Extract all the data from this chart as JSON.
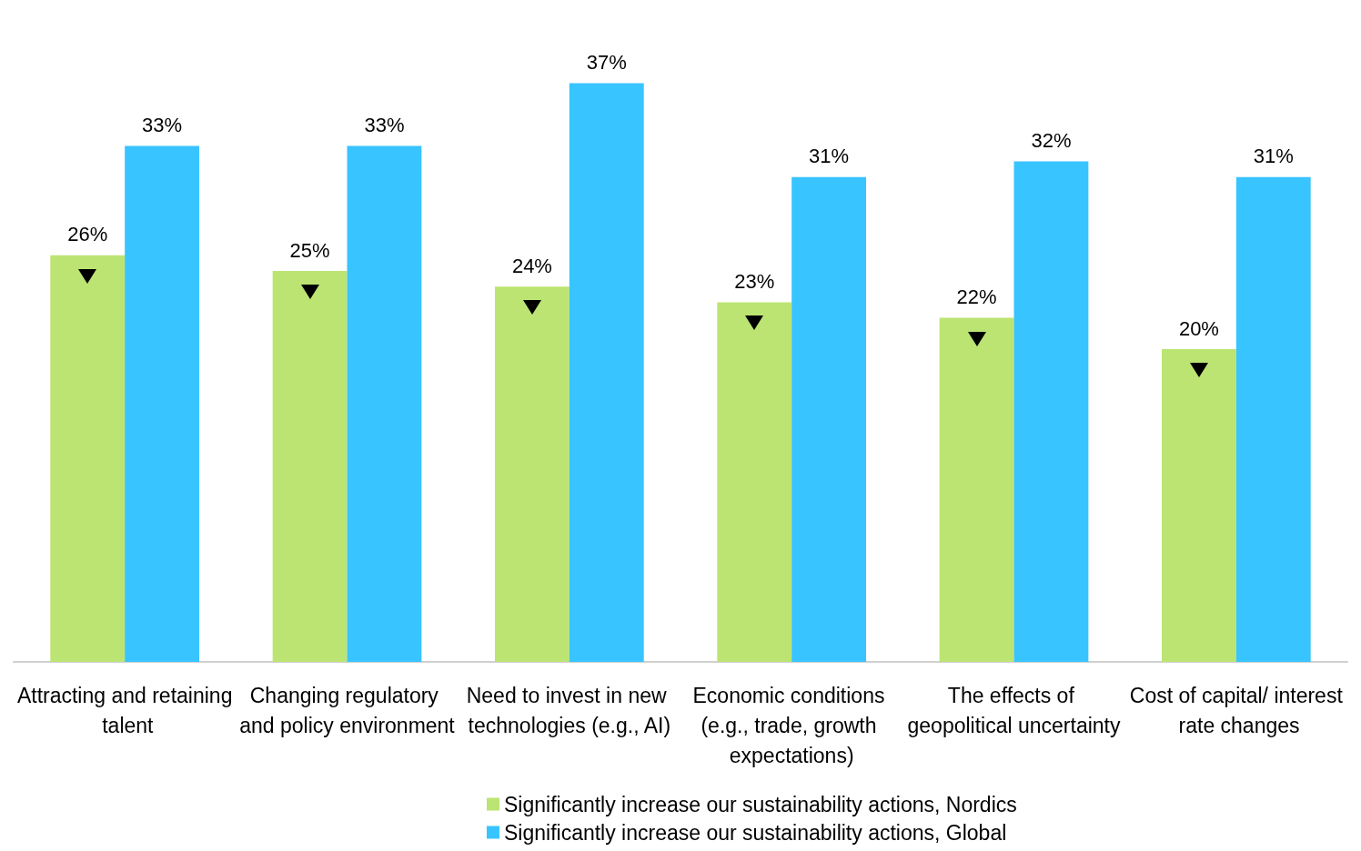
{
  "chart_data": {
    "type": "bar",
    "categories": [
      "Attracting and retaining talent",
      "Changing regulatory and policy environment",
      "Need to invest in new technologies (e.g., AI)",
      "Economic conditions (e.g., trade, growth expectations)",
      "The effects of geopolitical uncertainty",
      "Cost of capital/ interest rate changes"
    ],
    "series": [
      {
        "name": "Significantly increase our sustainability actions, Nordics",
        "color": "#bce472",
        "values": [
          26,
          25,
          24,
          23,
          22,
          20
        ],
        "value_labels": [
          "26%",
          "25%",
          "24%",
          "23%",
          "22%",
          "20%"
        ]
      },
      {
        "name": "Significantly increase our sustainability actions, Global",
        "color": "#38c4ff",
        "values": [
          33,
          33,
          37,
          31,
          32,
          31
        ],
        "value_labels": [
          "33%",
          "33%",
          "37%",
          "31%",
          "32%",
          "31%"
        ]
      }
    ],
    "legend": "bottom"
  }
}
